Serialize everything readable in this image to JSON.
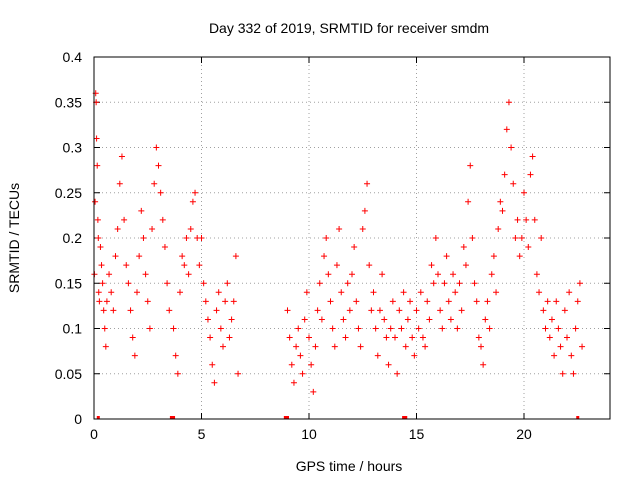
{
  "chart_data": {
    "type": "scatter",
    "title": "Day 332 of 2019, SRMTID for receiver smdm",
    "xlabel": "GPS time / hours",
    "ylabel": "SRMTID / TECUs",
    "xlim": [
      0,
      24
    ],
    "ylim": [
      0,
      0.4
    ],
    "xticks": [
      0,
      5,
      10,
      15,
      20
    ],
    "yticks": [
      0,
      0.05,
      0.1,
      0.15,
      0.2,
      0.25,
      0.3,
      0.35,
      0.4
    ],
    "xtick_labels": [
      "0",
      "5",
      "10",
      "15",
      "20"
    ],
    "ytick_labels": [
      "0",
      "0.05",
      "0.1",
      "0.15",
      "0.2",
      "0.25",
      "0.3",
      "0.35",
      "0.4"
    ],
    "grid": true,
    "marker": "+",
    "color": "#ff0000",
    "zero_points_x": [
      0.2,
      3.6,
      3.7,
      8.9,
      9.0,
      14.4,
      14.5,
      22.5
    ],
    "series": [
      {
        "name": "SRMTID",
        "points": [
          [
            0.02,
            0.16
          ],
          [
            0.05,
            0.24
          ],
          [
            0.08,
            0.36
          ],
          [
            0.1,
            0.35
          ],
          [
            0.12,
            0.31
          ],
          [
            0.15,
            0.28
          ],
          [
            0.18,
            0.22
          ],
          [
            0.2,
            0.2
          ],
          [
            0.22,
            0.14
          ],
          [
            0.25,
            0.13
          ],
          [
            0.3,
            0.19
          ],
          [
            0.35,
            0.17
          ],
          [
            0.4,
            0.15
          ],
          [
            0.45,
            0.12
          ],
          [
            0.5,
            0.1
          ],
          [
            0.55,
            0.08
          ],
          [
            0.6,
            0.13
          ],
          [
            0.7,
            0.16
          ],
          [
            0.8,
            0.14
          ],
          [
            0.9,
            0.12
          ],
          [
            1.0,
            0.18
          ],
          [
            1.1,
            0.21
          ],
          [
            1.2,
            0.26
          ],
          [
            1.3,
            0.29
          ],
          [
            1.4,
            0.22
          ],
          [
            1.5,
            0.17
          ],
          [
            1.6,
            0.15
          ],
          [
            1.7,
            0.12
          ],
          [
            1.8,
            0.09
          ],
          [
            1.9,
            0.07
          ],
          [
            2.0,
            0.14
          ],
          [
            2.1,
            0.18
          ],
          [
            2.2,
            0.23
          ],
          [
            2.3,
            0.2
          ],
          [
            2.4,
            0.16
          ],
          [
            2.5,
            0.13
          ],
          [
            2.6,
            0.1
          ],
          [
            2.7,
            0.21
          ],
          [
            2.8,
            0.26
          ],
          [
            2.9,
            0.3
          ],
          [
            3.0,
            0.28
          ],
          [
            3.1,
            0.25
          ],
          [
            3.2,
            0.22
          ],
          [
            3.3,
            0.19
          ],
          [
            3.4,
            0.15
          ],
          [
            3.5,
            0.12
          ],
          [
            3.7,
            0.1
          ],
          [
            3.8,
            0.07
          ],
          [
            3.9,
            0.05
          ],
          [
            4.0,
            0.14
          ],
          [
            4.1,
            0.18
          ],
          [
            4.2,
            0.17
          ],
          [
            4.3,
            0.2
          ],
          [
            4.4,
            0.16
          ],
          [
            4.5,
            0.21
          ],
          [
            4.6,
            0.24
          ],
          [
            4.7,
            0.25
          ],
          [
            4.8,
            0.2
          ],
          [
            4.9,
            0.17
          ],
          [
            5.0,
            0.2
          ],
          [
            5.1,
            0.15
          ],
          [
            5.2,
            0.13
          ],
          [
            5.3,
            0.11
          ],
          [
            5.4,
            0.09
          ],
          [
            5.5,
            0.06
          ],
          [
            5.6,
            0.04
          ],
          [
            5.7,
            0.12
          ],
          [
            5.8,
            0.14
          ],
          [
            5.9,
            0.1
          ],
          [
            6.0,
            0.08
          ],
          [
            6.1,
            0.13
          ],
          [
            6.2,
            0.15
          ],
          [
            6.3,
            0.09
          ],
          [
            6.4,
            0.11
          ],
          [
            6.5,
            0.13
          ],
          [
            6.6,
            0.18
          ],
          [
            6.7,
            0.05
          ],
          [
            9.0,
            0.12
          ],
          [
            9.1,
            0.09
          ],
          [
            9.2,
            0.06
          ],
          [
            9.3,
            0.04
          ],
          [
            9.4,
            0.08
          ],
          [
            9.5,
            0.1
          ],
          [
            9.6,
            0.07
          ],
          [
            9.7,
            0.05
          ],
          [
            9.8,
            0.11
          ],
          [
            9.9,
            0.14
          ],
          [
            10.0,
            0.09
          ],
          [
            10.1,
            0.06
          ],
          [
            10.2,
            0.03
          ],
          [
            10.3,
            0.08
          ],
          [
            10.4,
            0.12
          ],
          [
            10.5,
            0.15
          ],
          [
            10.6,
            0.11
          ],
          [
            10.7,
            0.18
          ],
          [
            10.8,
            0.2
          ],
          [
            10.9,
            0.16
          ],
          [
            11.0,
            0.13
          ],
          [
            11.1,
            0.1
          ],
          [
            11.2,
            0.08
          ],
          [
            11.3,
            0.17
          ],
          [
            11.4,
            0.21
          ],
          [
            11.5,
            0.14
          ],
          [
            11.6,
            0.11
          ],
          [
            11.7,
            0.09
          ],
          [
            11.8,
            0.15
          ],
          [
            11.9,
            0.12
          ],
          [
            12.0,
            0.16
          ],
          [
            12.1,
            0.19
          ],
          [
            12.2,
            0.13
          ],
          [
            12.3,
            0.1
          ],
          [
            12.4,
            0.08
          ],
          [
            12.5,
            0.21
          ],
          [
            12.6,
            0.23
          ],
          [
            12.7,
            0.26
          ],
          [
            12.8,
            0.17
          ],
          [
            12.9,
            0.12
          ],
          [
            13.0,
            0.14
          ],
          [
            13.1,
            0.1
          ],
          [
            13.2,
            0.07
          ],
          [
            13.3,
            0.12
          ],
          [
            13.4,
            0.16
          ],
          [
            13.5,
            0.11
          ],
          [
            13.6,
            0.09
          ],
          [
            13.7,
            0.06
          ],
          [
            13.8,
            0.1
          ],
          [
            13.9,
            0.13
          ],
          [
            14.0,
            0.09
          ],
          [
            14.1,
            0.05
          ],
          [
            14.2,
            0.12
          ],
          [
            14.3,
            0.1
          ],
          [
            14.4,
            0.14
          ],
          [
            14.5,
            0.08
          ],
          [
            14.6,
            0.11
          ],
          [
            14.7,
            0.13
          ],
          [
            14.8,
            0.09
          ],
          [
            14.9,
            0.07
          ],
          [
            15.0,
            0.12
          ],
          [
            15.1,
            0.1
          ],
          [
            15.2,
            0.14
          ],
          [
            15.3,
            0.09
          ],
          [
            15.4,
            0.08
          ],
          [
            15.5,
            0.13
          ],
          [
            15.6,
            0.11
          ],
          [
            15.7,
            0.17
          ],
          [
            15.8,
            0.15
          ],
          [
            15.9,
            0.2
          ],
          [
            16.0,
            0.16
          ],
          [
            16.1,
            0.12
          ],
          [
            16.2,
            0.1
          ],
          [
            16.3,
            0.15
          ],
          [
            16.4,
            0.18
          ],
          [
            16.5,
            0.13
          ],
          [
            16.6,
            0.11
          ],
          [
            16.7,
            0.16
          ],
          [
            16.8,
            0.14
          ],
          [
            16.9,
            0.1
          ],
          [
            17.0,
            0.15
          ],
          [
            17.1,
            0.12
          ],
          [
            17.2,
            0.19
          ],
          [
            17.3,
            0.17
          ],
          [
            17.4,
            0.24
          ],
          [
            17.5,
            0.28
          ],
          [
            17.6,
            0.2
          ],
          [
            17.7,
            0.15
          ],
          [
            17.8,
            0.13
          ],
          [
            17.9,
            0.09
          ],
          [
            18.0,
            0.08
          ],
          [
            18.1,
            0.06
          ],
          [
            18.2,
            0.11
          ],
          [
            18.3,
            0.13
          ],
          [
            18.4,
            0.1
          ],
          [
            18.5,
            0.16
          ],
          [
            18.6,
            0.18
          ],
          [
            18.7,
            0.14
          ],
          [
            18.8,
            0.21
          ],
          [
            18.9,
            0.24
          ],
          [
            19.0,
            0.23
          ],
          [
            19.1,
            0.27
          ],
          [
            19.2,
            0.32
          ],
          [
            19.3,
            0.35
          ],
          [
            19.4,
            0.3
          ],
          [
            19.5,
            0.26
          ],
          [
            19.6,
            0.2
          ],
          [
            19.7,
            0.22
          ],
          [
            19.8,
            0.18
          ],
          [
            19.9,
            0.2
          ],
          [
            20.0,
            0.25
          ],
          [
            20.1,
            0.22
          ],
          [
            20.2,
            0.19
          ],
          [
            20.3,
            0.27
          ],
          [
            20.4,
            0.29
          ],
          [
            20.5,
            0.22
          ],
          [
            20.6,
            0.16
          ],
          [
            20.7,
            0.14
          ],
          [
            20.8,
            0.2
          ],
          [
            20.9,
            0.12
          ],
          [
            21.0,
            0.1
          ],
          [
            21.1,
            0.13
          ],
          [
            21.2,
            0.09
          ],
          [
            21.3,
            0.11
          ],
          [
            21.4,
            0.07
          ],
          [
            21.5,
            0.13
          ],
          [
            21.6,
            0.1
          ],
          [
            21.7,
            0.08
          ],
          [
            21.8,
            0.05
          ],
          [
            21.9,
            0.12
          ],
          [
            22.0,
            0.09
          ],
          [
            22.1,
            0.14
          ],
          [
            22.2,
            0.07
          ],
          [
            22.3,
            0.05
          ],
          [
            22.4,
            0.1
          ],
          [
            22.5,
            0.13
          ],
          [
            22.6,
            0.15
          ],
          [
            22.7,
            0.08
          ]
        ]
      }
    ]
  }
}
